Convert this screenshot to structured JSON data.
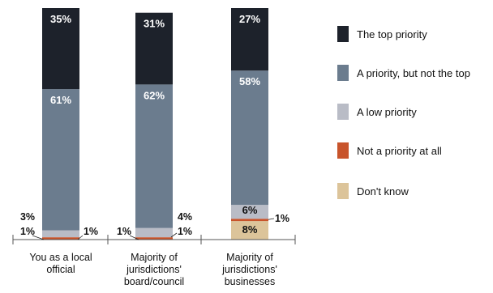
{
  "chart_data": {
    "type": "bar",
    "stacked": true,
    "orientation": "vertical",
    "categories": [
      [
        "You as a local",
        "official"
      ],
      [
        "Majority of",
        "jurisdictions'",
        "board/council"
      ],
      [
        "Majority of",
        "jurisdictions'",
        "businesses"
      ]
    ],
    "ylim": [
      0,
      100
    ],
    "series": [
      {
        "name": "Don't know",
        "color": "#dcc49a",
        "values": [
          0,
          0,
          8
        ],
        "labels": [
          "",
          "",
          "8%"
        ]
      },
      {
        "name": "Not a priority at all",
        "color": "#c8542b",
        "values": [
          1,
          1,
          1
        ],
        "labels": [
          "1%",
          "1%",
          "1%"
        ]
      },
      {
        "name": "A low priority",
        "color": "#b9bcc6",
        "values": [
          3,
          4,
          6
        ],
        "labels": [
          "3%",
          "4%",
          "6%"
        ]
      },
      {
        "name": "A priority, but not the top",
        "color": "#6b7c8e",
        "values": [
          61,
          62,
          58
        ],
        "labels": [
          "61%",
          "62%",
          "58%"
        ]
      },
      {
        "name": "The top priority",
        "color": "#1d222b",
        "values": [
          35,
          31,
          27
        ],
        "labels": [
          "35%",
          "31%",
          "27%"
        ]
      }
    ],
    "extra_labels": [
      "1%",
      "1%",
      "1%"
    ],
    "legend_order": [
      "The top priority",
      "A priority, but not the top",
      "A low priority",
      "Not a priority at all",
      "Don't know"
    ],
    "legend_position": "right",
    "grid": false
  }
}
